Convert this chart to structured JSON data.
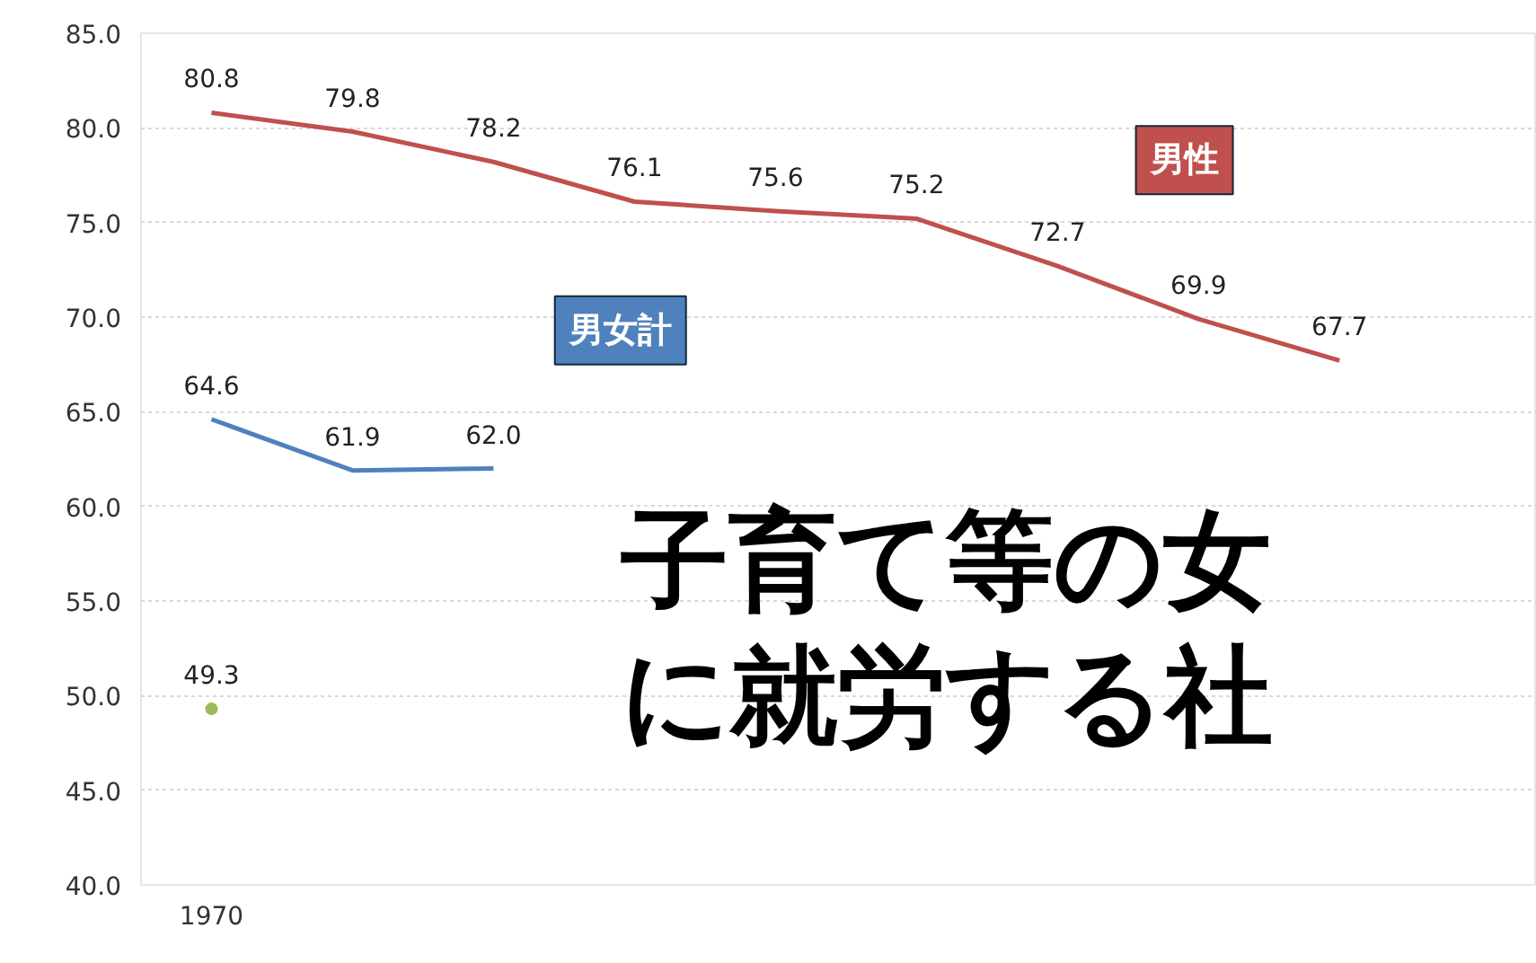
{
  "chart_data": {
    "type": "line",
    "categories": [
      "1970",
      null,
      null,
      null,
      null,
      null,
      null,
      null,
      null
    ],
    "ylim": [
      40,
      85
    ],
    "yticks": [
      {
        "value": 40,
        "label": "40.0"
      },
      {
        "value": 45,
        "label": "45.0"
      },
      {
        "value": 50,
        "label": "50.0"
      },
      {
        "value": 55,
        "label": "55.0"
      },
      {
        "value": 60,
        "label": "60.0"
      },
      {
        "value": 65,
        "label": "65.0"
      },
      {
        "value": 70,
        "label": "70.0"
      },
      {
        "value": 75,
        "label": "75.0"
      },
      {
        "value": 80,
        "label": "80.0"
      },
      {
        "value": 85,
        "label": "85.0"
      }
    ],
    "grid": "y",
    "line_style": "solid",
    "series": [
      {
        "name": "男性",
        "color": "#c0504d",
        "values": [
          80.8,
          79.8,
          78.2,
          76.1,
          75.6,
          75.2,
          72.7,
          69.9,
          67.7
        ],
        "value_labels": [
          "80.8",
          "79.8",
          "78.2",
          "76.1",
          "75.6",
          "75.2",
          "72.7",
          "69.9",
          "67.7"
        ]
      },
      {
        "name": "男女計",
        "color": "#4f81bd",
        "values": [
          64.6,
          61.9,
          62.0,
          null,
          null,
          null,
          null,
          null,
          null
        ],
        "value_labels": [
          "64.6",
          "61.9",
          "62.0",
          null,
          null,
          null,
          null,
          null,
          null
        ]
      },
      {
        "color": "#9bbb59",
        "marker": "circle",
        "values": [
          49.3,
          null,
          null,
          null,
          null,
          null,
          null,
          null,
          null
        ],
        "value_labels": [
          "49.3",
          null,
          null,
          null,
          null,
          null,
          null,
          null,
          null
        ]
      }
    ],
    "annotations": [
      "子育て等の女",
      "に就労する社"
    ]
  }
}
